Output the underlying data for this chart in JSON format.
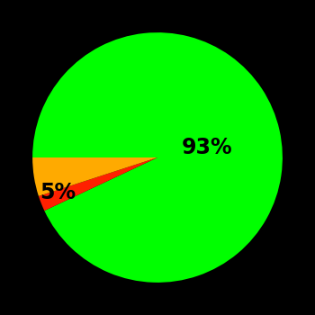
{
  "slices": [
    93,
    2,
    5
  ],
  "colors": [
    "#00ff00",
    "#ff2000",
    "#ffaa00"
  ],
  "labels": [
    "93%",
    "",
    "5%"
  ],
  "background_color": "#000000",
  "text_color": "#000000",
  "startangle": 180,
  "figsize": [
    3.5,
    3.5
  ],
  "dpi": 100
}
